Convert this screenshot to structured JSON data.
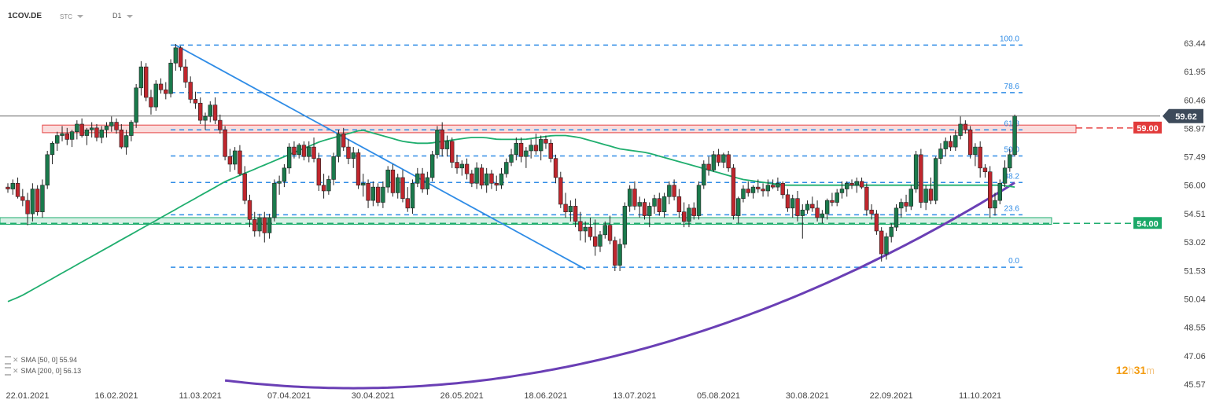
{
  "header": {
    "symbol": "1COV.DE",
    "chart_type": "STC",
    "timeframe": "D1"
  },
  "legend": [
    {
      "label": "SMA [50, 0] 55.94"
    },
    {
      "label": "SMA [200, 0] 56.13"
    }
  ],
  "timer": {
    "hours": "12",
    "h_unit": "h",
    "minutes": "31",
    "m_unit": "m"
  },
  "colors": {
    "up_candle": "#1a7a4c",
    "down_candle": "#c0262d",
    "sma50": "#1fae6e",
    "sma200": "#6a3fb5",
    "fib": "#2f8ce6",
    "trendline": "#2f8ce6",
    "resistance": "#e64545",
    "support": "#1fae6e",
    "last_price_bg": "#3d4a5a"
  },
  "chart_data": {
    "type": "candlestick",
    "symbol": "1COV.DE",
    "timeframe": "D1",
    "ylim": [
      45.57,
      63.44
    ],
    "y_ticks": [
      "63.44",
      "61.95",
      "60.46",
      "58.97",
      "57.49",
      "56.00",
      "54.51",
      "53.02",
      "51.53",
      "50.04",
      "48.55",
      "47.06",
      "45.57"
    ],
    "x_ticks": [
      "22.01.2021",
      "16.02.2021",
      "11.03.2021",
      "07.04.2021",
      "30.04.2021",
      "26.05.2021",
      "18.06.2021",
      "13.07.2021",
      "05.08.2021",
      "30.08.2021",
      "22.09.2021",
      "11.10.2021"
    ],
    "x_tick_index": [
      0,
      18,
      35,
      53,
      70,
      88,
      105,
      123,
      140,
      158,
      175,
      193
    ],
    "last_price": 59.62,
    "last_price_label": "59.62",
    "resistance_zone": [
      58.75,
      59.15
    ],
    "resistance_level": 59.0,
    "resistance_label": "59.00",
    "support_zone": [
      53.95,
      54.3
    ],
    "support_level": 54.0,
    "support_label": "54.00",
    "fibonacci": [
      {
        "label": "100.0",
        "value": 63.34
      },
      {
        "label": "78.6",
        "value": 60.85
      },
      {
        "label": "61.8",
        "value": 58.9
      },
      {
        "label": "50.0",
        "value": 57.53
      },
      {
        "label": "38.2",
        "value": 56.14
      },
      {
        "label": "23.6",
        "value": 54.45
      },
      {
        "label": "0.0",
        "value": 51.7
      }
    ],
    "candles": [
      [
        55.9,
        56.1,
        55.6,
        55.8
      ],
      [
        55.8,
        56.3,
        55.5,
        56.1
      ],
      [
        56.1,
        56.4,
        55.3,
        55.4
      ],
      [
        55.4,
        55.8,
        54.9,
        55.2
      ],
      [
        55.2,
        55.6,
        53.9,
        54.5
      ],
      [
        54.5,
        56.1,
        54.1,
        55.8
      ],
      [
        55.8,
        56.0,
        54.4,
        54.6
      ],
      [
        54.6,
        56.3,
        54.3,
        56.0
      ],
      [
        56.0,
        57.8,
        55.8,
        57.6
      ],
      [
        57.6,
        58.3,
        57.1,
        58.2
      ],
      [
        58.2,
        58.8,
        57.8,
        58.6
      ],
      [
        58.6,
        59.1,
        58.3,
        58.7
      ],
      [
        58.7,
        59.0,
        58.1,
        58.4
      ],
      [
        58.4,
        58.9,
        58.0,
        58.8
      ],
      [
        58.8,
        59.4,
        58.4,
        59.2
      ],
      [
        59.2,
        59.5,
        58.5,
        58.6
      ],
      [
        58.6,
        59.0,
        58.1,
        58.9
      ],
      [
        58.9,
        59.3,
        58.5,
        59.0
      ],
      [
        59.0,
        59.2,
        58.3,
        58.5
      ],
      [
        58.5,
        59.1,
        58.2,
        58.9
      ],
      [
        58.9,
        59.3,
        58.5,
        59.1
      ],
      [
        59.1,
        59.6,
        58.8,
        59.3
      ],
      [
        59.3,
        59.5,
        58.7,
        58.9
      ],
      [
        58.9,
        59.2,
        57.9,
        58.0
      ],
      [
        58.0,
        58.9,
        57.6,
        58.6
      ],
      [
        58.6,
        59.4,
        58.3,
        59.3
      ],
      [
        59.3,
        61.3,
        59.0,
        61.1
      ],
      [
        61.1,
        62.5,
        60.7,
        62.2
      ],
      [
        62.2,
        62.4,
        60.4,
        60.6
      ],
      [
        60.6,
        61.0,
        59.7,
        60.1
      ],
      [
        60.1,
        61.5,
        59.9,
        61.3
      ],
      [
        61.3,
        61.6,
        60.8,
        61.0
      ],
      [
        61.0,
        61.4,
        60.5,
        60.8
      ],
      [
        60.8,
        62.6,
        60.6,
        62.4
      ],
      [
        62.4,
        63.4,
        62.0,
        63.2
      ],
      [
        63.2,
        63.3,
        62.0,
        62.2
      ],
      [
        62.2,
        62.6,
        61.1,
        61.4
      ],
      [
        61.4,
        61.7,
        60.3,
        60.5
      ],
      [
        60.5,
        60.9,
        60.0,
        60.3
      ],
      [
        60.3,
        60.6,
        59.2,
        59.4
      ],
      [
        59.4,
        59.8,
        58.9,
        59.6
      ],
      [
        59.6,
        60.4,
        59.3,
        60.2
      ],
      [
        60.2,
        60.6,
        59.2,
        59.4
      ],
      [
        59.4,
        59.7,
        58.7,
        58.9
      ],
      [
        58.9,
        59.1,
        57.3,
        57.5
      ],
      [
        57.5,
        57.9,
        56.7,
        57.1
      ],
      [
        57.1,
        58.0,
        56.8,
        57.8
      ],
      [
        57.8,
        58.1,
        56.5,
        56.6
      ],
      [
        56.6,
        57.0,
        55.0,
        55.2
      ],
      [
        55.2,
        55.5,
        53.8,
        54.2
      ],
      [
        54.2,
        54.6,
        53.3,
        53.6
      ],
      [
        53.6,
        54.5,
        53.3,
        54.3
      ],
      [
        54.3,
        54.6,
        53.0,
        53.5
      ],
      [
        53.5,
        54.5,
        53.2,
        54.3
      ],
      [
        54.3,
        56.3,
        54.1,
        56.1
      ],
      [
        56.1,
        56.5,
        55.5,
        56.2
      ],
      [
        56.2,
        57.1,
        55.9,
        56.9
      ],
      [
        56.9,
        58.2,
        56.6,
        58.0
      ],
      [
        58.0,
        58.3,
        57.4,
        57.6
      ],
      [
        57.6,
        58.2,
        57.4,
        58.1
      ],
      [
        58.1,
        58.3,
        57.3,
        57.5
      ],
      [
        57.5,
        58.3,
        57.2,
        58.0
      ],
      [
        58.0,
        58.5,
        57.2,
        57.4
      ],
      [
        57.4,
        57.7,
        55.7,
        56.0
      ],
      [
        56.0,
        56.6,
        55.3,
        55.7
      ],
      [
        55.7,
        56.5,
        55.5,
        56.3
      ],
      [
        56.3,
        57.7,
        56.0,
        57.5
      ],
      [
        57.5,
        58.9,
        57.2,
        58.7
      ],
      [
        58.7,
        59.0,
        57.8,
        58.0
      ],
      [
        58.0,
        58.4,
        57.1,
        57.4
      ],
      [
        57.4,
        58.0,
        56.9,
        57.7
      ],
      [
        57.7,
        57.9,
        55.8,
        56.0
      ],
      [
        56.0,
        56.6,
        55.4,
        56.1
      ],
      [
        56.1,
        56.3,
        54.8,
        55.2
      ],
      [
        55.2,
        56.2,
        54.9,
        55.9
      ],
      [
        55.9,
        56.1,
        54.9,
        55.1
      ],
      [
        55.1,
        56.2,
        54.8,
        55.9
      ],
      [
        55.9,
        57.0,
        55.6,
        56.8
      ],
      [
        56.8,
        57.1,
        55.4,
        55.6
      ],
      [
        55.6,
        56.6,
        55.3,
        56.4
      ],
      [
        56.4,
        56.8,
        55.1,
        55.3
      ],
      [
        55.3,
        55.9,
        54.6,
        54.8
      ],
      [
        54.8,
        56.3,
        54.5,
        56.1
      ],
      [
        56.1,
        56.9,
        55.9,
        56.6
      ],
      [
        56.6,
        56.9,
        55.6,
        55.8
      ],
      [
        55.8,
        56.7,
        55.5,
        56.4
      ],
      [
        56.4,
        57.8,
        56.2,
        57.6
      ],
      [
        57.6,
        59.1,
        57.4,
        58.9
      ],
      [
        58.9,
        59.3,
        57.5,
        57.9
      ],
      [
        57.9,
        58.6,
        57.5,
        58.3
      ],
      [
        58.3,
        58.5,
        56.9,
        57.2
      ],
      [
        57.2,
        57.6,
        56.6,
        56.9
      ],
      [
        56.9,
        57.3,
        56.5,
        57.1
      ],
      [
        57.1,
        57.4,
        56.3,
        56.6
      ],
      [
        56.6,
        56.8,
        55.9,
        56.1
      ],
      [
        56.1,
        57.2,
        55.8,
        56.9
      ],
      [
        56.9,
        57.1,
        55.8,
        56.0
      ],
      [
        56.0,
        56.9,
        55.6,
        56.6
      ],
      [
        56.6,
        56.8,
        55.8,
        56.1
      ],
      [
        56.1,
        56.5,
        55.7,
        56.0
      ],
      [
        56.0,
        56.9,
        55.8,
        56.6
      ],
      [
        56.6,
        57.4,
        56.4,
        57.2
      ],
      [
        57.2,
        57.9,
        57.0,
        57.6
      ],
      [
        57.6,
        58.5,
        57.3,
        58.2
      ],
      [
        58.2,
        58.5,
        57.2,
        57.5
      ],
      [
        57.5,
        58.0,
        56.9,
        57.8
      ],
      [
        57.8,
        58.4,
        57.4,
        58.1
      ],
      [
        58.1,
        58.7,
        57.6,
        57.8
      ],
      [
        57.8,
        58.6,
        57.3,
        58.4
      ],
      [
        58.4,
        58.6,
        57.9,
        58.2
      ],
      [
        58.2,
        58.4,
        57.2,
        57.4
      ],
      [
        57.4,
        57.6,
        56.1,
        56.4
      ],
      [
        56.4,
        56.7,
        54.8,
        55.0
      ],
      [
        55.0,
        55.6,
        54.3,
        54.6
      ],
      [
        54.6,
        55.2,
        54.1,
        54.9
      ],
      [
        54.9,
        55.3,
        53.8,
        54.1
      ],
      [
        54.1,
        54.6,
        53.1,
        53.6
      ],
      [
        53.6,
        54.1,
        53.0,
        53.8
      ],
      [
        53.8,
        54.3,
        53.1,
        53.3
      ],
      [
        53.3,
        54.2,
        52.3,
        52.8
      ],
      [
        52.8,
        53.6,
        52.5,
        53.4
      ],
      [
        53.4,
        54.1,
        53.2,
        53.9
      ],
      [
        53.9,
        54.4,
        52.9,
        53.1
      ],
      [
        53.1,
        53.3,
        51.5,
        51.8
      ],
      [
        51.8,
        53.2,
        51.5,
        52.9
      ],
      [
        52.9,
        55.1,
        52.7,
        54.9
      ],
      [
        54.9,
        56.0,
        54.6,
        55.8
      ],
      [
        55.8,
        56.2,
        54.7,
        54.9
      ],
      [
        54.9,
        55.4,
        54.3,
        55.1
      ],
      [
        55.1,
        55.3,
        54.2,
        54.4
      ],
      [
        54.4,
        55.1,
        53.8,
        54.9
      ],
      [
        54.9,
        55.5,
        54.5,
        55.3
      ],
      [
        55.3,
        55.6,
        54.4,
        54.6
      ],
      [
        54.6,
        55.6,
        54.3,
        55.4
      ],
      [
        55.4,
        56.2,
        55.0,
        56.0
      ],
      [
        56.0,
        56.3,
        55.2,
        55.4
      ],
      [
        55.4,
        55.8,
        54.3,
        54.6
      ],
      [
        54.6,
        55.1,
        53.8,
        54.1
      ],
      [
        54.1,
        55.0,
        53.8,
        54.8
      ],
      [
        54.8,
        55.1,
        54.2,
        54.4
      ],
      [
        54.4,
        56.2,
        54.2,
        56.0
      ],
      [
        56.0,
        57.3,
        55.8,
        57.1
      ],
      [
        57.1,
        57.5,
        56.5,
        56.8
      ],
      [
        56.8,
        57.8,
        56.7,
        57.6
      ],
      [
        57.6,
        57.9,
        57.0,
        57.2
      ],
      [
        57.2,
        57.7,
        56.9,
        57.6
      ],
      [
        57.6,
        57.8,
        56.7,
        56.9
      ],
      [
        56.9,
        57.1,
        54.2,
        54.4
      ],
      [
        54.4,
        55.4,
        54.0,
        55.3
      ],
      [
        55.3,
        56.0,
        55.1,
        55.8
      ],
      [
        55.8,
        56.2,
        55.4,
        55.6
      ],
      [
        55.6,
        56.0,
        55.3,
        55.9
      ],
      [
        55.9,
        56.3,
        55.6,
        55.8
      ],
      [
        55.8,
        56.1,
        55.4,
        55.7
      ],
      [
        55.7,
        56.3,
        55.4,
        56.0
      ],
      [
        56.0,
        56.3,
        55.8,
        55.9
      ],
      [
        55.9,
        56.4,
        55.7,
        56.1
      ],
      [
        56.1,
        56.2,
        55.3,
        55.5
      ],
      [
        55.5,
        55.8,
        54.6,
        54.8
      ],
      [
        54.8,
        55.5,
        54.3,
        55.3
      ],
      [
        55.3,
        55.7,
        54.1,
        54.4
      ],
      [
        54.4,
        55.0,
        53.2,
        54.7
      ],
      [
        54.7,
        55.2,
        54.5,
        55.0
      ],
      [
        55.0,
        55.4,
        54.6,
        54.8
      ],
      [
        54.8,
        55.2,
        54.1,
        54.3
      ],
      [
        54.3,
        54.7,
        54.0,
        54.5
      ],
      [
        54.5,
        55.3,
        54.2,
        55.2
      ],
      [
        55.2,
        55.6,
        54.9,
        55.1
      ],
      [
        55.1,
        55.8,
        54.9,
        55.6
      ],
      [
        55.6,
        56.2,
        55.3,
        55.8
      ],
      [
        55.8,
        56.2,
        55.4,
        56.1
      ],
      [
        56.1,
        56.3,
        55.8,
        56.0
      ],
      [
        56.0,
        56.4,
        55.6,
        56.2
      ],
      [
        56.2,
        56.4,
        55.8,
        55.9
      ],
      [
        55.9,
        56.1,
        54.4,
        54.7
      ],
      [
        54.7,
        55.0,
        54.2,
        54.5
      ],
      [
        54.5,
        54.7,
        53.4,
        53.6
      ],
      [
        53.6,
        53.8,
        52.0,
        52.4
      ],
      [
        52.4,
        53.5,
        52.1,
        53.3
      ],
      [
        53.3,
        54.0,
        53.0,
        53.8
      ],
      [
        53.8,
        55.0,
        53.6,
        54.8
      ],
      [
        54.8,
        55.3,
        54.3,
        55.1
      ],
      [
        55.1,
        55.5,
        54.6,
        54.9
      ],
      [
        54.9,
        56.0,
        54.7,
        55.8
      ],
      [
        55.8,
        57.8,
        55.6,
        57.6
      ],
      [
        57.6,
        57.9,
        54.8,
        55.1
      ],
      [
        55.1,
        56.0,
        54.7,
        55.8
      ],
      [
        55.8,
        56.4,
        55.0,
        55.2
      ],
      [
        55.2,
        57.5,
        55.0,
        57.4
      ],
      [
        57.4,
        58.2,
        57.1,
        57.9
      ],
      [
        57.9,
        58.5,
        57.5,
        58.3
      ],
      [
        58.3,
        58.6,
        57.8,
        58.0
      ],
      [
        58.0,
        58.9,
        57.8,
        58.6
      ],
      [
        58.6,
        59.6,
        58.4,
        59.2
      ],
      [
        59.2,
        59.4,
        58.7,
        58.9
      ],
      [
        58.9,
        59.1,
        57.4,
        57.6
      ],
      [
        57.6,
        58.2,
        57.0,
        58.0
      ],
      [
        58.0,
        58.3,
        56.4,
        56.9
      ],
      [
        56.9,
        57.1,
        56.4,
        56.7
      ],
      [
        56.7,
        57.0,
        54.3,
        54.8
      ],
      [
        54.8,
        55.6,
        54.4,
        55.2
      ],
      [
        55.2,
        56.3,
        55.0,
        56.1
      ],
      [
        56.1,
        57.3,
        55.9,
        56.9
      ],
      [
        56.9,
        57.9,
        56.7,
        57.6
      ],
      [
        57.6,
        59.7,
        57.5,
        59.62
      ]
    ],
    "series": [
      {
        "name": "SMA [50, 0] 55.94",
        "values": [
          49.9,
          50.2,
          50.6,
          51.0,
          51.4,
          51.8,
          52.2,
          52.6,
          53.0,
          53.4,
          53.8,
          54.2,
          54.6,
          55.0,
          55.4,
          55.8,
          56.2,
          56.5,
          56.8,
          57.1,
          57.4,
          57.7,
          58.0,
          58.3,
          58.5,
          58.7,
          58.9,
          58.7,
          58.5,
          58.3,
          58.2,
          58.2,
          58.3,
          58.4,
          58.5,
          58.5,
          58.4,
          58.4,
          58.4,
          58.5,
          58.6,
          58.6,
          58.5,
          58.3,
          58.1,
          57.9,
          57.8,
          57.7,
          57.5,
          57.3,
          57.1,
          56.9,
          56.7,
          56.5,
          56.3,
          56.2,
          56.1,
          56.0,
          56.0,
          56.0,
          56.0,
          56.0,
          56.0,
          56.0,
          56.0,
          56.0,
          56.0,
          56.0,
          56.0,
          56.0,
          56.0,
          56.0,
          56.0,
          56.0,
          55.9
        ]
      }
    ]
  }
}
